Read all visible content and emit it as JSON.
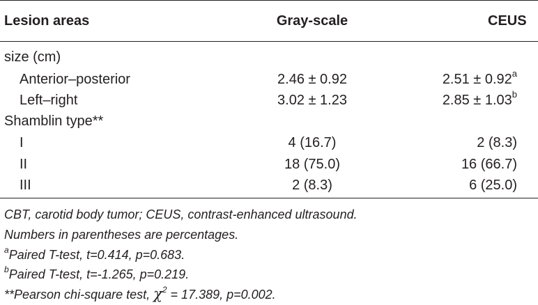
{
  "table": {
    "headers": {
      "col1": "Lesion areas",
      "col2": "Gray-scale",
      "col3": "CEUS"
    },
    "rows": [
      {
        "label": "size (cm)",
        "indent": false,
        "gray": "",
        "ceus": "",
        "ceus_sup": ""
      },
      {
        "label": "Anterior–posterior",
        "indent": true,
        "gray": "2.46 ± 0.92",
        "ceus": "2.51 ± 0.92",
        "ceus_sup": "a"
      },
      {
        "label": "Left–right",
        "indent": true,
        "gray": "3.02 ± 1.23",
        "ceus": "2.85 ± 1.03",
        "ceus_sup": "b"
      },
      {
        "label": "Shamblin type**",
        "indent": false,
        "gray": "",
        "ceus": "",
        "ceus_sup": ""
      },
      {
        "label": "I",
        "indent": true,
        "gray": "4 (16.7)",
        "ceus": "2 (8.3)",
        "ceus_sup": ""
      },
      {
        "label": "II",
        "indent": true,
        "gray": "18 (75.0)",
        "ceus": "16 (66.7)",
        "ceus_sup": ""
      },
      {
        "label": "III",
        "indent": true,
        "gray": "2 (8.3)",
        "ceus": "6 (25.0)",
        "ceus_sup": ""
      }
    ]
  },
  "footnotes": {
    "abbrev": "CBT, carotid body tumor; CEUS, contrast-enhanced ultrasound.",
    "percent": "Numbers in parentheses are percentages.",
    "a_mark": "a",
    "a_text": "Paired T-test, t=0.414, p=0.683.",
    "b_mark": "b",
    "b_text": "Paired T-test, t=-1.265, p=0.219.",
    "chi_prefix": "**Pearson chi-square test, ",
    "chi_symbol": "χ",
    "chi_exp": "2",
    "chi_suffix": " = 17.389, p=0.002."
  }
}
